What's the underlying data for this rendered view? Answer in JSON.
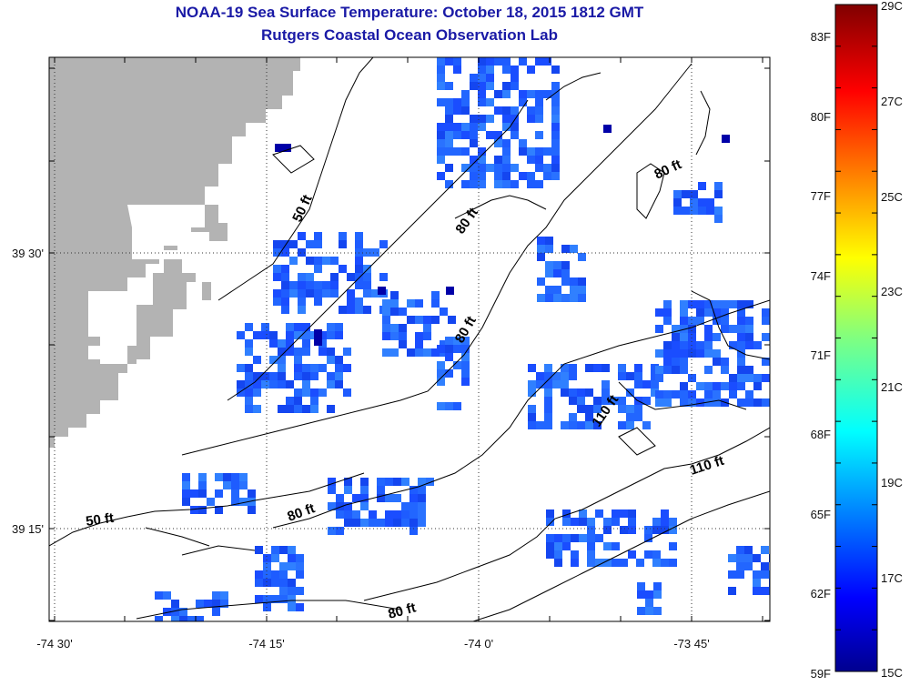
{
  "header": {
    "title": "NOAA-19 Sea Surface Temperature:  October 18, 2015 1812 GMT",
    "subtitle": "Rutgers Coastal Ocean Observation Lab"
  },
  "map": {
    "x_ticks": [
      "-74 30'",
      "-74 15'",
      "-74 0'",
      "-73 45'"
    ],
    "y_ticks": [
      "39 30'",
      "39 15'"
    ],
    "contour_labels": [
      "50 ft",
      "80 ft",
      "80 ft",
      "80 ft",
      "80 ft",
      "110 ft",
      "110 ft",
      "80 ft",
      "50 ft"
    ],
    "colors": {
      "land": "#b3b3b3",
      "sst_dominant": "#1e5cff",
      "sst_cold": "#0000a8"
    }
  },
  "colorbar": {
    "fahrenheit_labels": [
      "83F",
      "80F",
      "77F",
      "74F",
      "71F",
      "68F",
      "65F",
      "62F",
      "59F"
    ],
    "celsius_labels": [
      "29C",
      "27C",
      "25C",
      "23C",
      "21C",
      "19C",
      "17C",
      "15C"
    ],
    "range_c": [
      15,
      29
    ],
    "colors": [
      "#00008f",
      "#0000ff",
      "#0080ff",
      "#00ffff",
      "#80ff80",
      "#ffff00",
      "#ff8000",
      "#ff0000",
      "#800000"
    ]
  }
}
